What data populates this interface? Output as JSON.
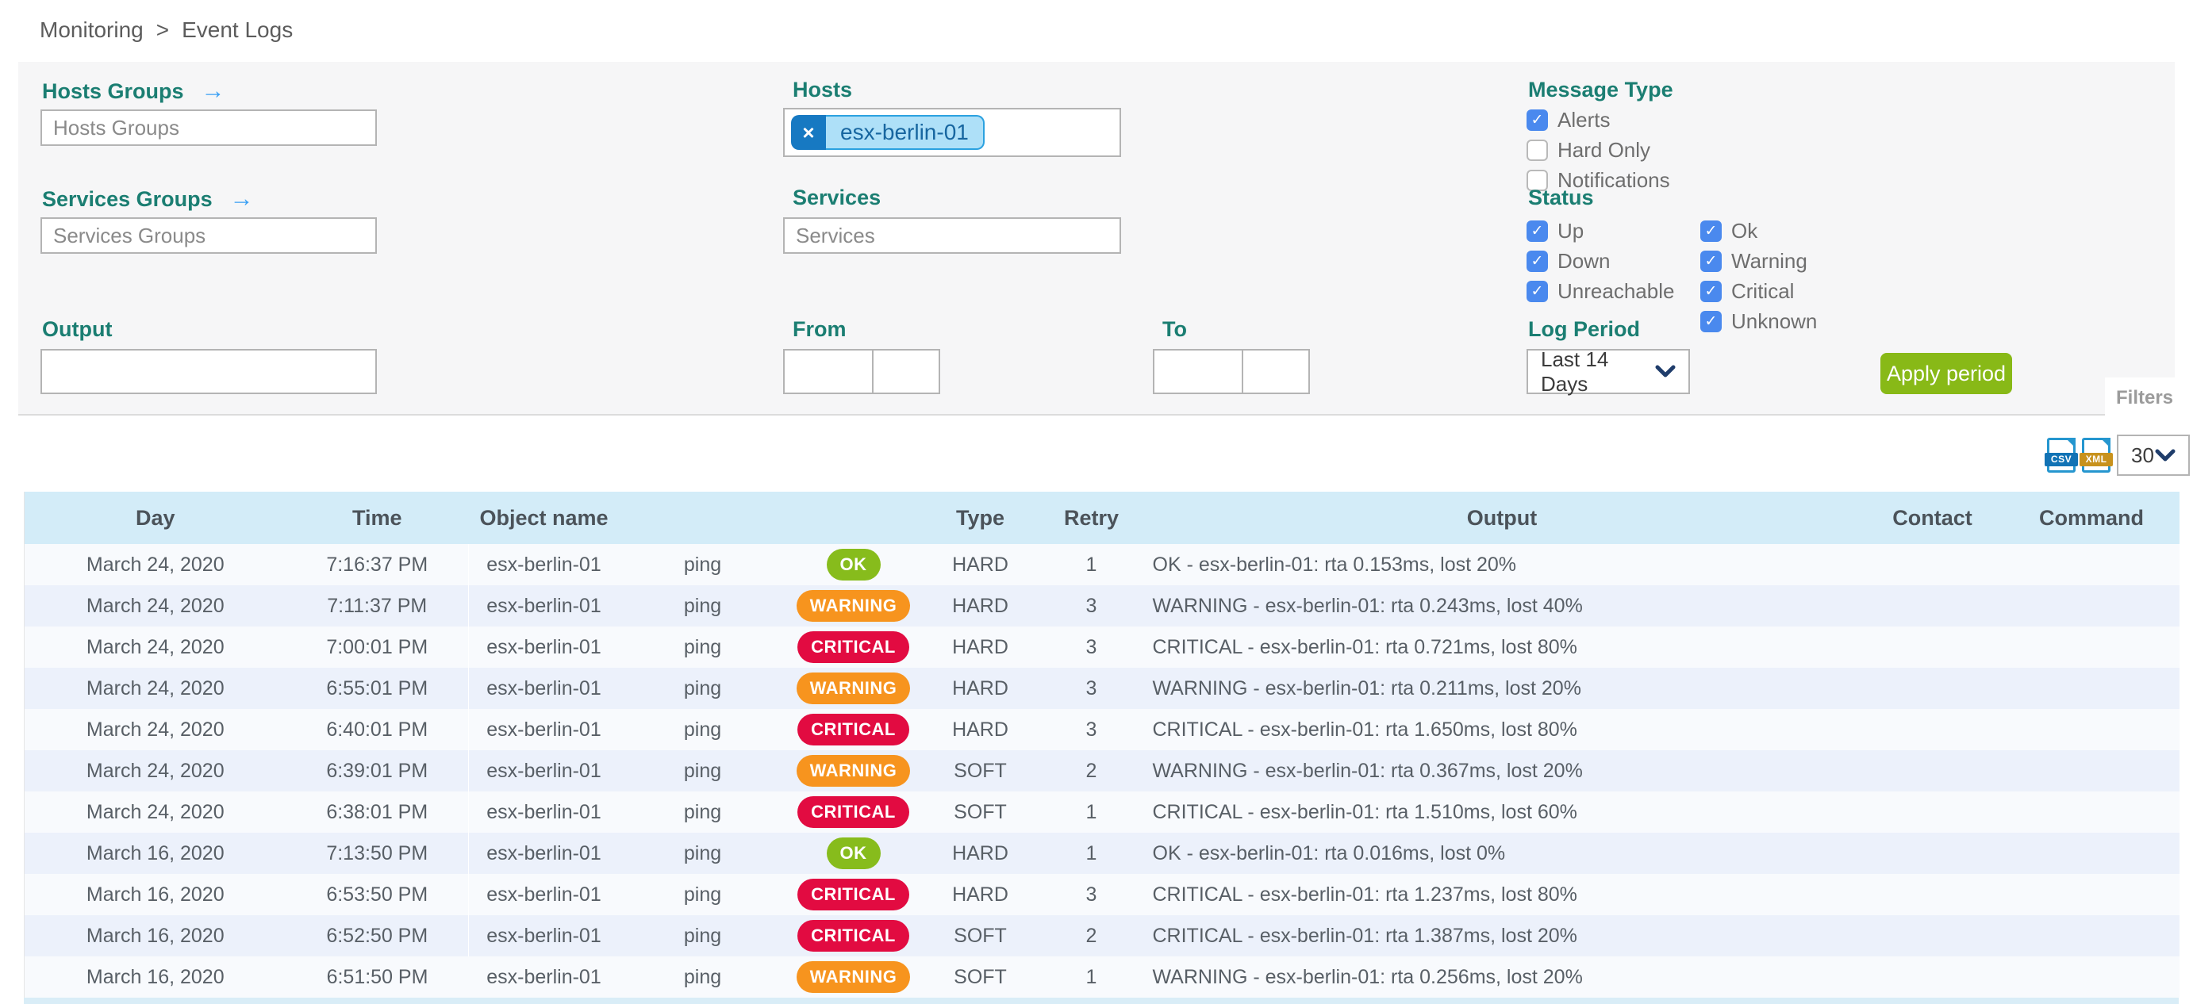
{
  "breadcrumb": {
    "items": [
      "Monitoring",
      "Event Logs"
    ],
    "separator": ">"
  },
  "panel": {
    "hosts_groups_label": "Hosts Groups",
    "hosts_groups_placeholder": "Hosts Groups",
    "services_groups_label": "Services Groups",
    "services_groups_placeholder": "Services Groups",
    "hosts_label": "Hosts",
    "hosts_chip": "esx-berlin-01",
    "hosts_chip_remove": "×",
    "services_label": "Services",
    "services_placeholder": "Services",
    "output_label": "Output",
    "from_label": "From",
    "to_label": "To",
    "message_type_label": "Message Type",
    "message_type_options": [
      {
        "label": "Alerts",
        "checked": true
      },
      {
        "label": "Hard Only",
        "checked": false
      },
      {
        "label": "Notifications",
        "checked": false
      }
    ],
    "status_label": "Status",
    "status_host_options": [
      {
        "label": "Up",
        "checked": true
      },
      {
        "label": "Down",
        "checked": true
      },
      {
        "label": "Unreachable",
        "checked": true
      }
    ],
    "status_service_options": [
      {
        "label": "Ok",
        "checked": true
      },
      {
        "label": "Warning",
        "checked": true
      },
      {
        "label": "Critical",
        "checked": true
      },
      {
        "label": "Unknown",
        "checked": true
      }
    ],
    "log_period_label": "Log Period",
    "log_period_value": "Last 14 Days",
    "apply_button": "Apply period",
    "filters_tab": "Filters",
    "goto_arrow": "→",
    "check_glyph": "✓"
  },
  "toolbar": {
    "csv_icon_label": "CSV",
    "xml_icon_label": "XML",
    "page_size": "30"
  },
  "table": {
    "columns": [
      "Day",
      "Time",
      "Object name",
      "",
      "",
      "Type",
      "Retry",
      "Output",
      "Contact",
      "Command"
    ],
    "rows": [
      {
        "day": "March 24, 2020",
        "time": "7:16:37 PM",
        "object": "esx-berlin-01",
        "service": "ping",
        "status": "OK",
        "state_type": "HARD",
        "retry": "1",
        "output": "OK - esx-berlin-01: rta 0.153ms, lost 20%",
        "contact": "",
        "command": ""
      },
      {
        "day": "March 24, 2020",
        "time": "7:11:37 PM",
        "object": "esx-berlin-01",
        "service": "ping",
        "status": "WARNING",
        "state_type": "HARD",
        "retry": "3",
        "output": "WARNING - esx-berlin-01: rta 0.243ms, lost 40%",
        "contact": "",
        "command": ""
      },
      {
        "day": "March 24, 2020",
        "time": "7:00:01 PM",
        "object": "esx-berlin-01",
        "service": "ping",
        "status": "CRITICAL",
        "state_type": "HARD",
        "retry": "3",
        "output": "CRITICAL - esx-berlin-01: rta 0.721ms, lost 80%",
        "contact": "",
        "command": ""
      },
      {
        "day": "March 24, 2020",
        "time": "6:55:01 PM",
        "object": "esx-berlin-01",
        "service": "ping",
        "status": "WARNING",
        "state_type": "HARD",
        "retry": "3",
        "output": "WARNING - esx-berlin-01: rta 0.211ms, lost 20%",
        "contact": "",
        "command": ""
      },
      {
        "day": "March 24, 2020",
        "time": "6:40:01 PM",
        "object": "esx-berlin-01",
        "service": "ping",
        "status": "CRITICAL",
        "state_type": "HARD",
        "retry": "3",
        "output": "CRITICAL - esx-berlin-01: rta 1.650ms, lost 80%",
        "contact": "",
        "command": ""
      },
      {
        "day": "March 24, 2020",
        "time": "6:39:01 PM",
        "object": "esx-berlin-01",
        "service": "ping",
        "status": "WARNING",
        "state_type": "SOFT",
        "retry": "2",
        "output": "WARNING - esx-berlin-01: rta 0.367ms, lost 20%",
        "contact": "",
        "command": ""
      },
      {
        "day": "March 24, 2020",
        "time": "6:38:01 PM",
        "object": "esx-berlin-01",
        "service": "ping",
        "status": "CRITICAL",
        "state_type": "SOFT",
        "retry": "1",
        "output": "CRITICAL - esx-berlin-01: rta 1.510ms, lost 60%",
        "contact": "",
        "command": ""
      },
      {
        "day": "March 16, 2020",
        "time": "7:13:50 PM",
        "object": "esx-berlin-01",
        "service": "ping",
        "status": "OK",
        "state_type": "HARD",
        "retry": "1",
        "output": "OK - esx-berlin-01: rta 0.016ms, lost 0%",
        "contact": "",
        "command": ""
      },
      {
        "day": "March 16, 2020",
        "time": "6:53:50 PM",
        "object": "esx-berlin-01",
        "service": "ping",
        "status": "CRITICAL",
        "state_type": "HARD",
        "retry": "3",
        "output": "CRITICAL - esx-berlin-01: rta 1.237ms, lost 80%",
        "contact": "",
        "command": ""
      },
      {
        "day": "March 16, 2020",
        "time": "6:52:50 PM",
        "object": "esx-berlin-01",
        "service": "ping",
        "status": "CRITICAL",
        "state_type": "SOFT",
        "retry": "2",
        "output": "CRITICAL - esx-berlin-01: rta 1.387ms, lost 20%",
        "contact": "",
        "command": ""
      },
      {
        "day": "March 16, 2020",
        "time": "6:51:50 PM",
        "object": "esx-berlin-01",
        "service": "ping",
        "status": "WARNING",
        "state_type": "SOFT",
        "retry": "1",
        "output": "WARNING - esx-berlin-01: rta 0.256ms, lost 20%",
        "contact": "",
        "command": ""
      }
    ]
  },
  "colors": {
    "ok": "#87bc1c",
    "warning": "#f7941e",
    "critical": "#e20b41",
    "accent_teal": "#1b7e72",
    "apply_green": "#88b917",
    "checkbox_blue": "#4a89ee",
    "table_header_blue": "#d3ecf8",
    "chip_blue": "#aee0f8",
    "chip_button_blue": "#1779c2"
  }
}
